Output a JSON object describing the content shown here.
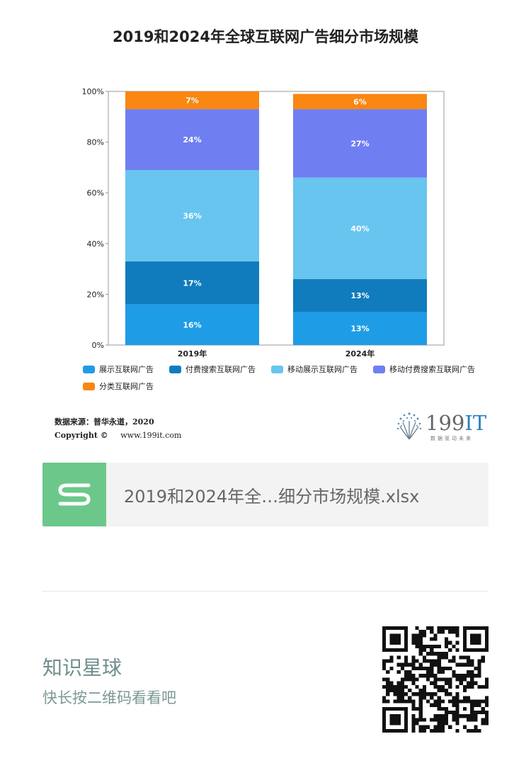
{
  "title": "2019和2024年全球互联网广告细分市场规模",
  "chart_data": {
    "type": "bar",
    "stacked": true,
    "categories": [
      "2019年",
      "2024年"
    ],
    "series": [
      {
        "name": "展示互联网广告",
        "color": "#1f9ce6",
        "values": [
          16,
          13
        ],
        "labels": [
          "16%",
          "13%"
        ]
      },
      {
        "name": "付费搜索互联网广告",
        "color": "#107cbd",
        "values": [
          17,
          13
        ],
        "labels": [
          "17%",
          "13%"
        ]
      },
      {
        "name": "移动展示互联网广告",
        "color": "#67c5ef",
        "values": [
          36,
          40
        ],
        "labels": [
          "36%",
          "40%"
        ]
      },
      {
        "name": "移动付费搜索互联网广告",
        "color": "#6f7ff2",
        "values": [
          24,
          27
        ],
        "labels": [
          "24%",
          "27%"
        ]
      },
      {
        "name": "分类互联网广告",
        "color": "#f98711",
        "values": [
          7,
          6
        ],
        "labels": [
          "7%",
          "6%"
        ]
      }
    ],
    "yticks": [
      "0%",
      "20%",
      "40%",
      "60%",
      "80%",
      "100%"
    ],
    "ylim": [
      0,
      100
    ],
    "legend_position": "bottom"
  },
  "source": {
    "text": "数据来源：普华永道，2020",
    "copyright": "Copyright ©",
    "url": "www.199it.com"
  },
  "logo": {
    "number": "199",
    "it": "IT",
    "slogan": "数据驱动未来"
  },
  "file_card": {
    "name": "2019和2024年全…细分市场规模.xlsx"
  },
  "footer": {
    "brand": "知识星球",
    "hint": "快长按二维码看看吧"
  }
}
